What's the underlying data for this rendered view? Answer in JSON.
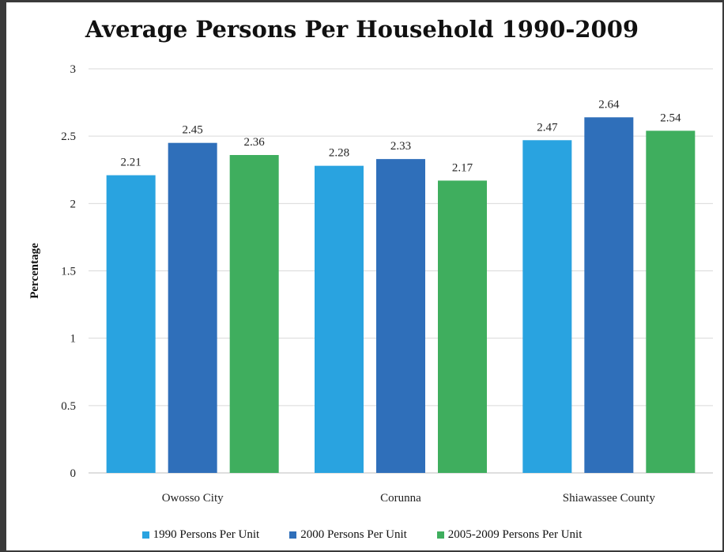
{
  "chart_data": {
    "type": "bar",
    "title": "Average Persons Per Household 1990-2009",
    "xlabel": "",
    "ylabel": "Percentage",
    "ylim": [
      0,
      3
    ],
    "yticks": [
      "0",
      "0.5",
      "1",
      "1.5",
      "2",
      "2.5",
      "3"
    ],
    "categories": [
      "Owosso City",
      "Corunna",
      "Shiawassee County"
    ],
    "series": [
      {
        "name": "1990 Persons Per Unit",
        "color": "#29a3e0",
        "values": [
          2.21,
          2.28,
          2.47
        ],
        "labels": [
          "2.21",
          "2.28",
          "2.47"
        ]
      },
      {
        "name": "2000 Persons Per Unit",
        "color": "#2f6fba",
        "values": [
          2.45,
          2.33,
          2.64
        ],
        "labels": [
          "2.45",
          "2.33",
          "2.64"
        ]
      },
      {
        "name": "2005-2009 Persons Per Unit",
        "color": "#3fae5e",
        "values": [
          2.36,
          2.17,
          2.54
        ],
        "labels": [
          "2.36",
          "2.17",
          "2.54"
        ]
      }
    ],
    "grid": true,
    "legend_position": "bottom"
  }
}
